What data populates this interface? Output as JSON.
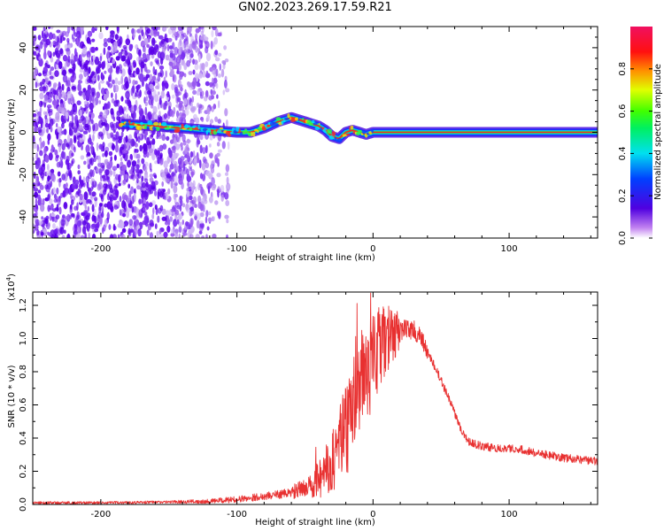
{
  "figure_title": "GN02.2023.269.17.59.R21",
  "chart_data": [
    {
      "type": "heatmap",
      "name": "spectrogram",
      "title": "GN02.2023.269.17.59.R21",
      "xlabel": "Height of straight line (km)",
      "ylabel": "Frequency (Hz)",
      "xlim": [
        -250,
        165
      ],
      "ylim": [
        -50,
        50
      ],
      "xticks": [
        -200,
        -100,
        0,
        100
      ],
      "yticks": [
        -40,
        -20,
        0,
        20,
        40
      ],
      "colorbar": {
        "label": "Normalized spectral amplitude",
        "range": [
          0,
          1
        ],
        "ticks": [
          "0.0",
          "0.2",
          "0.4",
          "0.6",
          "0.8"
        ],
        "tick_values": [
          0,
          0.2,
          0.4,
          0.6,
          0.8
        ],
        "colormap": "rainbow: white-purple-blue-cyan-green-yellow-orange-red-magenta"
      },
      "noise_region_x": [
        -250,
        -115
      ],
      "signal_start_x": -185,
      "signal_ridge": {
        "x": [
          -185,
          -160,
          -140,
          -120,
          -100,
          -90,
          -80,
          -70,
          -60,
          -55,
          -45,
          -40,
          -35,
          -30,
          -25,
          -20,
          -15,
          -10,
          -5,
          0,
          20,
          50,
          80,
          100,
          130,
          165
        ],
        "y": [
          4,
          3,
          2,
          1,
          0,
          0,
          2,
          5,
          7,
          6,
          4,
          3,
          1,
          -2,
          -3,
          0,
          1,
          0,
          -1,
          0,
          0,
          0,
          0,
          0,
          0,
          0
        ]
      }
    },
    {
      "type": "line",
      "name": "snr",
      "title": "",
      "xlabel": "Height of straight line (km)",
      "ylabel": "SNR (10 * v/v)",
      "y_scale_label": "(x10",
      "y_scale_exponent": "4",
      "xlim": [
        -250,
        165
      ],
      "ylim": [
        0,
        1.28
      ],
      "xticks": [
        -200,
        -100,
        0,
        100
      ],
      "yticks": [
        "0.0",
        "0.2",
        "0.4",
        "0.6",
        "0.8",
        "1.0",
        "1.2"
      ],
      "ytick_values": [
        0,
        0.2,
        0.4,
        0.6,
        0.8,
        1.0,
        1.2
      ],
      "series_color": "#e83030",
      "series": [
        {
          "name": "SNR",
          "x": [
            -250,
            -200,
            -150,
            -120,
            -100,
            -80,
            -60,
            -50,
            -45,
            -40,
            -30,
            -25,
            -20,
            -15,
            -10,
            -5,
            0,
            5,
            10,
            15,
            20,
            25,
            30,
            35,
            40,
            50,
            60,
            65,
            70,
            80,
            90,
            100,
            110,
            120,
            140,
            165
          ],
          "y": [
            0.01,
            0.01,
            0.015,
            0.02,
            0.03,
            0.05,
            0.07,
            0.1,
            0.13,
            0.15,
            0.25,
            0.35,
            0.45,
            0.55,
            0.7,
            0.8,
            0.85,
            0.95,
            1.0,
            1.02,
            1.05,
            1.06,
            1.05,
            1.0,
            0.92,
            0.75,
            0.55,
            0.45,
            0.38,
            0.35,
            0.34,
            0.34,
            0.33,
            0.31,
            0.28,
            0.26
          ]
        }
      ]
    }
  ]
}
